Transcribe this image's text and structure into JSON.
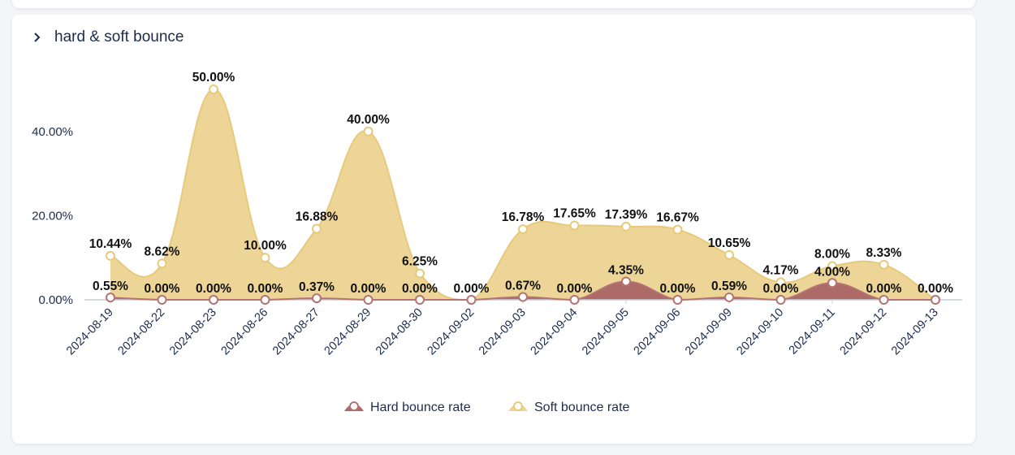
{
  "card": {
    "title": "hard & soft bounce"
  },
  "colors": {
    "hard_line": "#b57373",
    "hard_fill": "#ad6a67",
    "soft_line": "#e8c97a",
    "soft_fill": "#ecd597",
    "axis": "#c9ced8"
  },
  "chart_data": {
    "type": "area",
    "categories": [
      "2024-08-19",
      "2024-08-22",
      "2024-08-23",
      "2024-08-26",
      "2024-08-27",
      "2024-08-29",
      "2024-08-30",
      "2024-09-02",
      "2024-09-03",
      "2024-09-04",
      "2024-09-05",
      "2024-09-06",
      "2024-09-09",
      "2024-09-10",
      "2024-09-11",
      "2024-09-12",
      "2024-09-13"
    ],
    "series": [
      {
        "name": "Hard bounce rate",
        "values": [
          0.55,
          0.0,
          0.0,
          0.0,
          0.37,
          0.0,
          0.0,
          0.0,
          0.67,
          0.0,
          4.35,
          0.0,
          0.59,
          0.0,
          4.0,
          0.0,
          0.0
        ],
        "labels": [
          "0.55%",
          "0.00%",
          "0.00%",
          "0.00%",
          "0.37%",
          "0.00%",
          "0.00%",
          "0.00%",
          "0.67%",
          "0.00%",
          "4.35%",
          "0.00%",
          "0.59%",
          "0.00%",
          "4.00%",
          "0.00%",
          "0.00%"
        ]
      },
      {
        "name": "Soft bounce rate",
        "values": [
          10.44,
          8.62,
          50.0,
          10.0,
          16.88,
          40.0,
          6.25,
          0.0,
          16.78,
          17.65,
          17.39,
          16.67,
          10.65,
          4.17,
          8.0,
          8.33,
          0.0
        ],
        "labels": [
          "10.44%",
          "8.62%",
          "50.00%",
          "10.00%",
          "16.88%",
          "40.00%",
          "6.25%",
          "",
          "16.78%",
          "17.65%",
          "17.39%",
          "16.67%",
          "10.65%",
          "4.17%",
          "8.00%",
          "8.33%",
          ""
        ]
      }
    ],
    "y_ticks": [
      "0.00%",
      "20.00%",
      "40.00%"
    ],
    "y_tick_values": [
      0,
      20,
      40
    ],
    "ylim": [
      0,
      50
    ],
    "grid": false,
    "legend_position": "bottom-center",
    "smooth": true
  }
}
